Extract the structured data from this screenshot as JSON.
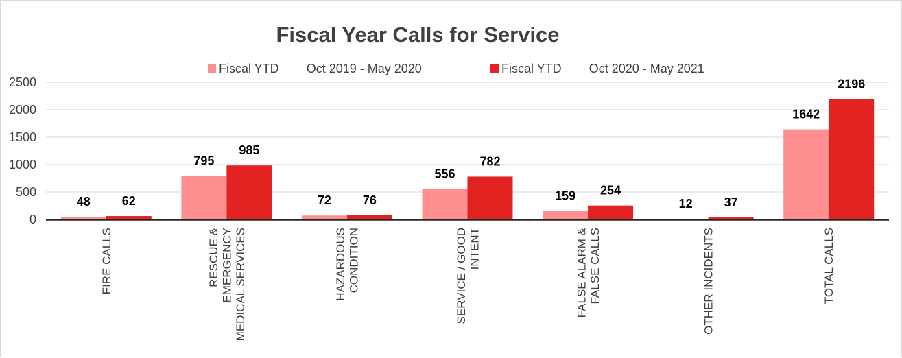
{
  "chart_data": {
    "type": "bar",
    "title": "Fiscal Year Calls for Service",
    "categories": [
      [
        "FIRE CALLS"
      ],
      [
        "RESCUE &",
        "EMERGENCY",
        "MEDICAL SERVICES"
      ],
      [
        "HAZARDOUS",
        "CONDITION"
      ],
      [
        "SERVICE / GOOD",
        "INTENT"
      ],
      [
        "FALSE ALARM &",
        "FALSE CALLS"
      ],
      [
        "OTHER INCIDENTS"
      ],
      [
        "TOTAL CALLS"
      ]
    ],
    "series": [
      {
        "name": "Fiscal YTD        Oct 2019 - May 2020",
        "color": "#ff8f8f",
        "values": [
          48,
          795,
          72,
          556,
          159,
          12,
          1642
        ]
      },
      {
        "name": "Fiscal YTD        Oct 2020 - May 2021",
        "color": "#e32222",
        "values": [
          62,
          985,
          76,
          782,
          254,
          37,
          2196
        ]
      }
    ],
    "ylim": [
      0,
      2500
    ],
    "yticks": [
      0,
      500,
      1000,
      1500,
      2000,
      2500
    ],
    "grid": true,
    "legend": "top",
    "data_labels": true,
    "xlabel": "",
    "ylabel": ""
  }
}
